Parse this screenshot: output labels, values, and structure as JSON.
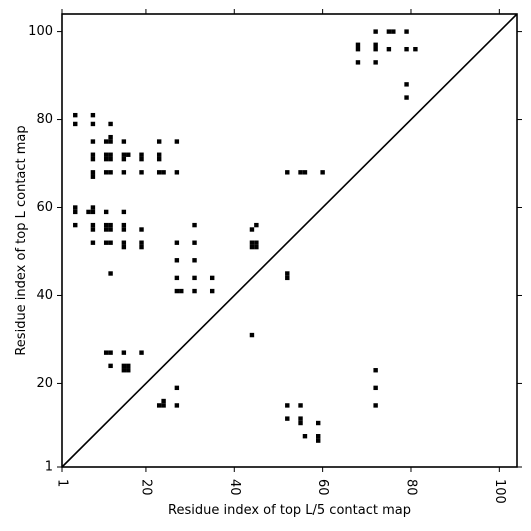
{
  "chart_data": {
    "type": "scatter",
    "xlabel": "Residue index of top L/5 contact map",
    "ylabel": "Residue index of top L contact map",
    "xlim": [
      1,
      104
    ],
    "ylim": [
      1,
      104
    ],
    "xticks": [
      1,
      20,
      40,
      60,
      80,
      100
    ],
    "yticks": [
      1,
      20,
      40,
      60,
      80,
      100
    ],
    "x_tick_rotation": 90,
    "grid": false,
    "diagonal": true,
    "marker": "square",
    "colors": {
      "points": "#000000",
      "diagonal": "#000000",
      "frame": "#000000"
    },
    "points": [
      [
        68,
        96
      ],
      [
        68,
        97
      ],
      [
        72,
        96
      ],
      [
        72,
        97
      ],
      [
        72,
        100
      ],
      [
        75,
        100
      ],
      [
        76,
        100
      ],
      [
        79,
        100
      ],
      [
        75,
        96
      ],
      [
        79,
        96
      ],
      [
        81,
        96
      ],
      [
        68,
        93
      ],
      [
        72,
        93
      ],
      [
        79,
        88
      ],
      [
        79,
        85
      ],
      [
        4,
        81
      ],
      [
        4,
        79
      ],
      [
        8,
        81
      ],
      [
        8,
        79
      ],
      [
        12,
        79
      ],
      [
        12,
        76
      ],
      [
        8,
        75
      ],
      [
        11,
        75
      ],
      [
        12,
        75
      ],
      [
        15,
        75
      ],
      [
        23,
        75
      ],
      [
        27,
        75
      ],
      [
        8,
        72
      ],
      [
        8,
        71
      ],
      [
        11,
        72
      ],
      [
        11,
        71
      ],
      [
        12,
        72
      ],
      [
        12,
        71
      ],
      [
        15,
        72
      ],
      [
        15,
        71
      ],
      [
        16,
        72
      ],
      [
        19,
        72
      ],
      [
        19,
        71
      ],
      [
        23,
        72
      ],
      [
        23,
        71
      ],
      [
        8,
        68
      ],
      [
        8,
        67
      ],
      [
        11,
        68
      ],
      [
        12,
        68
      ],
      [
        15,
        68
      ],
      [
        19,
        68
      ],
      [
        23,
        68
      ],
      [
        24,
        68
      ],
      [
        27,
        68
      ],
      [
        52,
        68
      ],
      [
        55,
        68
      ],
      [
        56,
        68
      ],
      [
        60,
        68
      ],
      [
        4,
        60
      ],
      [
        4,
        59
      ],
      [
        7,
        59
      ],
      [
        8,
        60
      ],
      [
        8,
        59
      ],
      [
        11,
        59
      ],
      [
        15,
        59
      ],
      [
        4,
        56
      ],
      [
        8,
        56
      ],
      [
        8,
        55
      ],
      [
        11,
        56
      ],
      [
        11,
        55
      ],
      [
        12,
        56
      ],
      [
        12,
        55
      ],
      [
        15,
        56
      ],
      [
        15,
        55
      ],
      [
        19,
        55
      ],
      [
        31,
        56
      ],
      [
        45,
        56
      ],
      [
        44,
        55
      ],
      [
        8,
        52
      ],
      [
        11,
        52
      ],
      [
        12,
        52
      ],
      [
        15,
        52
      ],
      [
        15,
        51
      ],
      [
        19,
        52
      ],
      [
        19,
        51
      ],
      [
        27,
        52
      ],
      [
        31,
        52
      ],
      [
        44,
        52
      ],
      [
        45,
        52
      ],
      [
        44,
        51
      ],
      [
        45,
        51
      ],
      [
        27,
        48
      ],
      [
        31,
        48
      ],
      [
        12,
        45
      ],
      [
        52,
        45
      ],
      [
        52,
        44
      ],
      [
        27,
        44
      ],
      [
        31,
        44
      ],
      [
        35,
        44
      ],
      [
        27,
        41
      ],
      [
        28,
        41
      ],
      [
        31,
        41
      ],
      [
        35,
        41
      ],
      [
        44,
        31
      ],
      [
        11,
        27
      ],
      [
        12,
        27
      ],
      [
        15,
        27
      ],
      [
        19,
        27
      ],
      [
        12,
        24
      ],
      [
        15,
        24
      ],
      [
        16,
        24
      ],
      [
        15,
        23
      ],
      [
        16,
        23
      ],
      [
        72,
        23
      ],
      [
        27,
        19
      ],
      [
        72,
        19
      ],
      [
        24,
        16
      ],
      [
        23,
        15
      ],
      [
        24,
        15
      ],
      [
        27,
        15
      ],
      [
        52,
        15
      ],
      [
        55,
        15
      ],
      [
        72,
        15
      ],
      [
        52,
        12
      ],
      [
        55,
        12
      ],
      [
        55,
        11
      ],
      [
        59,
        11
      ],
      [
        56,
        8
      ],
      [
        59,
        8
      ],
      [
        59,
        7
      ]
    ]
  }
}
